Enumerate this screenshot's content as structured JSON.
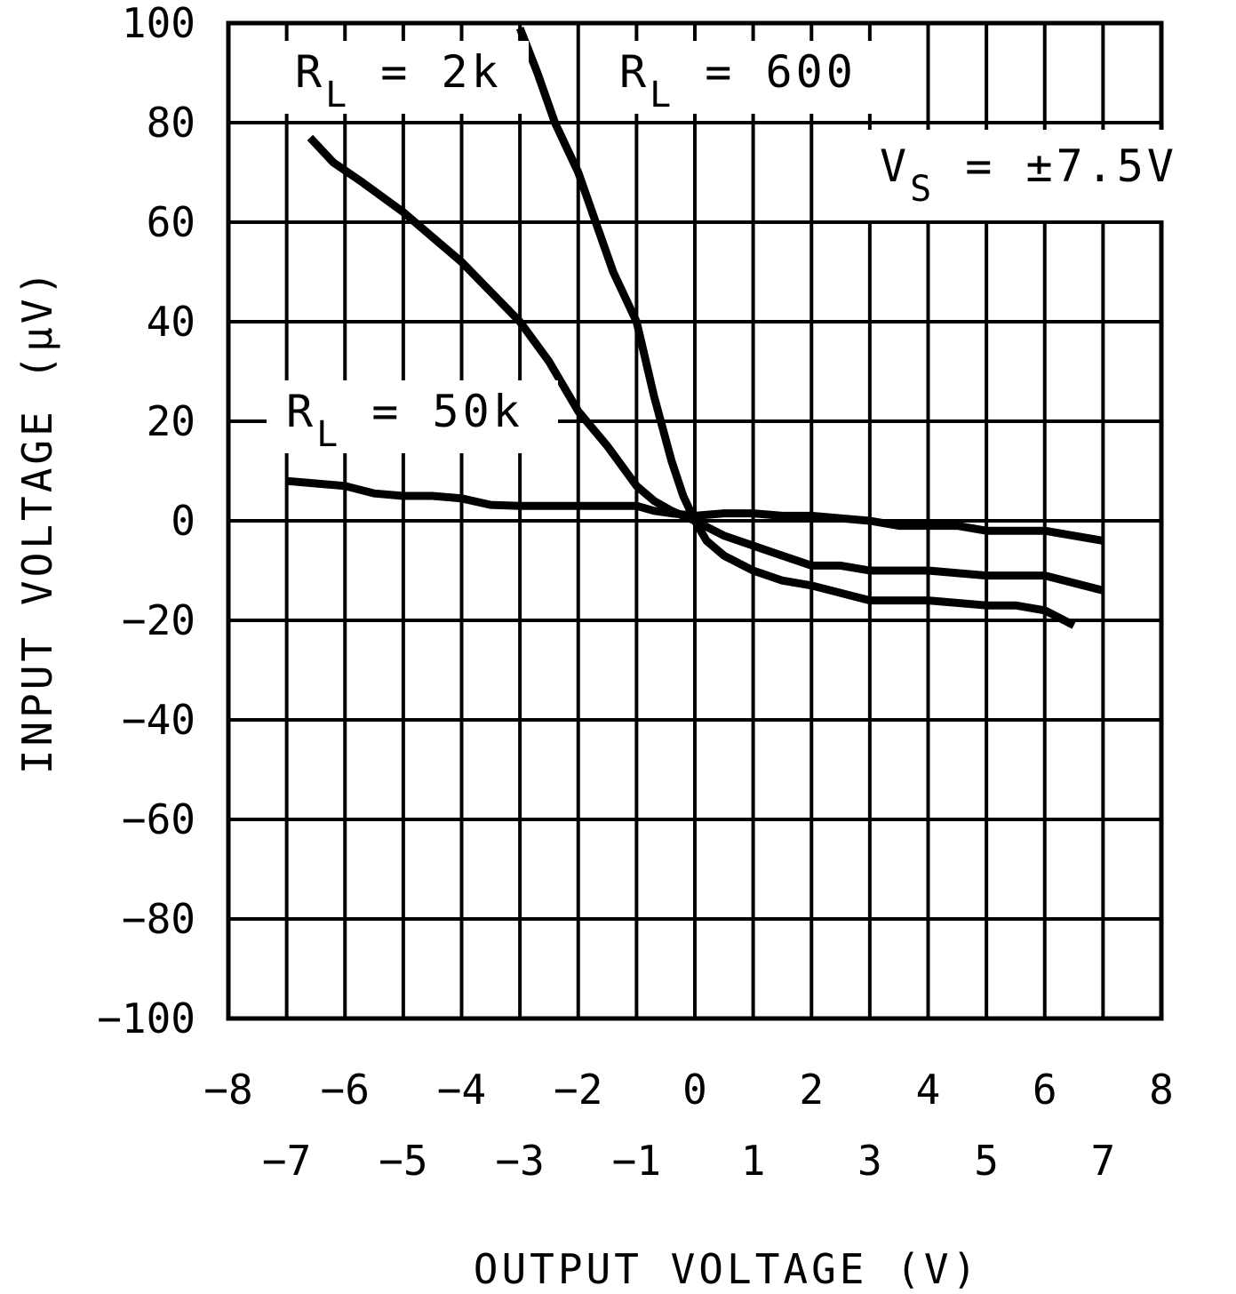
{
  "chart_data": {
    "type": "line",
    "xlabel": "OUTPUT VOLTAGE (V)",
    "ylabel": "INPUT VOLTAGE (µV)",
    "xlim": [
      -8,
      8
    ],
    "ylim": [
      -100,
      100
    ],
    "x_ticks_major": [
      "-8",
      "-6",
      "-4",
      "-2",
      "0",
      "2",
      "4",
      "6",
      "8"
    ],
    "x_ticks_minor": [
      "-7",
      "-5",
      "-3",
      "-1",
      "1",
      "3",
      "5",
      "7"
    ],
    "y_ticks": [
      "100",
      "80",
      "60",
      "40",
      "20",
      "0",
      "-20",
      "-40",
      "-60",
      "-80",
      "-100"
    ],
    "grid": true,
    "annotations": [
      {
        "main": "R",
        "sub": "L",
        "rest": " = 2k"
      },
      {
        "main": "R",
        "sub": "L",
        "rest": " = 600"
      },
      {
        "main": "V",
        "sub": "S",
        "rest": " = ±7.5V"
      },
      {
        "main": "R",
        "sub": "L",
        "rest": " = 50k"
      }
    ],
    "series": [
      {
        "x": [
          -3.0,
          -2.7,
          -2.4,
          -2.0,
          -1.7,
          -1.4,
          -1.0,
          -0.7,
          -0.4,
          -0.2,
          0.0,
          0.2,
          0.5,
          1.0,
          1.5,
          2.0,
          3.0,
          4.0,
          5.0,
          5.5,
          6.0,
          6.5
        ],
        "y": [
          99,
          90,
          80,
          70,
          60,
          50,
          40,
          25,
          12,
          5,
          0,
          -4,
          -7,
          -10,
          -12,
          -13,
          -16,
          -16,
          -17,
          -17,
          -18,
          -21
        ]
      },
      {
        "x": [
          -6.6,
          -6.2,
          -5.7,
          -5.0,
          -4.4,
          -4.0,
          -3.5,
          -3.0,
          -2.5,
          -2.0,
          -1.5,
          -1.0,
          -0.7,
          -0.4,
          0.0,
          0.5,
          1.0,
          1.5,
          2.0,
          2.5,
          3.0,
          3.5,
          4.0,
          5.0,
          6.0,
          7.0
        ],
        "y": [
          77,
          72,
          68,
          62,
          56,
          52,
          46,
          40,
          32,
          22,
          15,
          7,
          4,
          2,
          0,
          -3,
          -5,
          -7,
          -9,
          -9,
          -10,
          -10,
          -10,
          -11,
          -11,
          -14
        ]
      },
      {
        "x": [
          -7.0,
          -6.5,
          -6.0,
          -5.5,
          -5.0,
          -4.5,
          -4.0,
          -3.5,
          -3.0,
          -2.5,
          -2.0,
          -1.5,
          -1.0,
          -0.7,
          -0.4,
          0.0,
          0.5,
          1.0,
          1.5,
          2.0,
          2.5,
          3.0,
          3.5,
          4.0,
          4.5,
          5.0,
          5.5,
          6.0,
          6.5,
          7.0
        ],
        "y": [
          8,
          7.5,
          7,
          5.5,
          5,
          5,
          4.5,
          3.2,
          3,
          3,
          3,
          3,
          3,
          2,
          1.5,
          1,
          1.5,
          1.5,
          1,
          1,
          0.5,
          0,
          -1,
          -1,
          -1,
          -2,
          -2,
          -2,
          -3,
          -4
        ]
      }
    ]
  }
}
